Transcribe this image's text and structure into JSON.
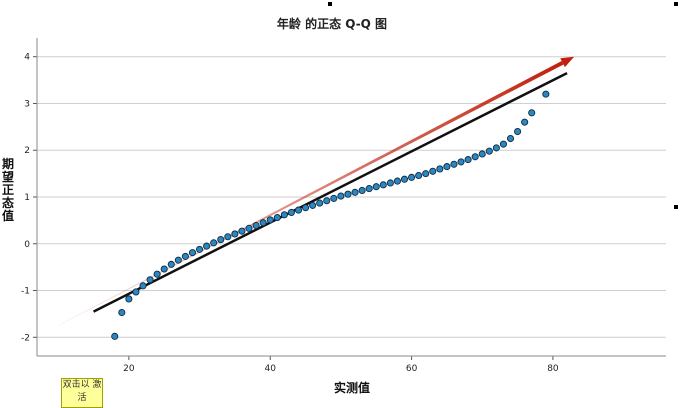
{
  "chart_data": {
    "type": "scatter",
    "title": "年龄 的正态 Q-Q 图",
    "xlabel": "实测值",
    "ylabel": "期望正态值",
    "xlim": [
      7,
      96
    ],
    "ylim": [
      -2.4,
      4.4
    ],
    "x_ticks": [
      20,
      40,
      60,
      80
    ],
    "y_ticks": [
      -2,
      -1,
      0,
      1,
      2,
      3,
      4
    ],
    "grid": "horizontal",
    "points": {
      "x": [
        18,
        19,
        20,
        21,
        22,
        23,
        24,
        25,
        26,
        27,
        28,
        29,
        30,
        31,
        32,
        33,
        34,
        35,
        36,
        37,
        38,
        39,
        40,
        41,
        42,
        43,
        44,
        45,
        46,
        47,
        48,
        49,
        50,
        51,
        52,
        53,
        54,
        55,
        56,
        57,
        58,
        59,
        60,
        61,
        62,
        63,
        64,
        65,
        66,
        67,
        68,
        69,
        70,
        71,
        72,
        73,
        74,
        75,
        76,
        77,
        79
      ],
      "y": [
        -1.98,
        -1.47,
        -1.18,
        -1.03,
        -0.9,
        -0.77,
        -0.65,
        -0.54,
        -0.44,
        -0.35,
        -0.27,
        -0.19,
        -0.12,
        -0.05,
        0.02,
        0.09,
        0.15,
        0.21,
        0.27,
        0.33,
        0.39,
        0.45,
        0.51,
        0.56,
        0.62,
        0.67,
        0.72,
        0.77,
        0.82,
        0.87,
        0.92,
        0.97,
        1.02,
        1.06,
        1.1,
        1.14,
        1.18,
        1.22,
        1.26,
        1.3,
        1.34,
        1.38,
        1.42,
        1.46,
        1.5,
        1.55,
        1.6,
        1.65,
        1.7,
        1.75,
        1.8,
        1.86,
        1.92,
        1.98,
        2.05,
        2.13,
        2.25,
        2.4,
        2.6,
        2.8,
        3.2
      ]
    },
    "reference_line": {
      "x": [
        15,
        82
      ],
      "y": [
        -1.45,
        3.65
      ],
      "color": "#111111"
    },
    "trend_arrow": {
      "x": [
        10,
        83
      ],
      "y": [
        -1.75,
        4.0
      ],
      "color": "#c0200c"
    },
    "point_color": "#2e86c1"
  },
  "tooltip": {
    "text": "双击以 激活"
  }
}
